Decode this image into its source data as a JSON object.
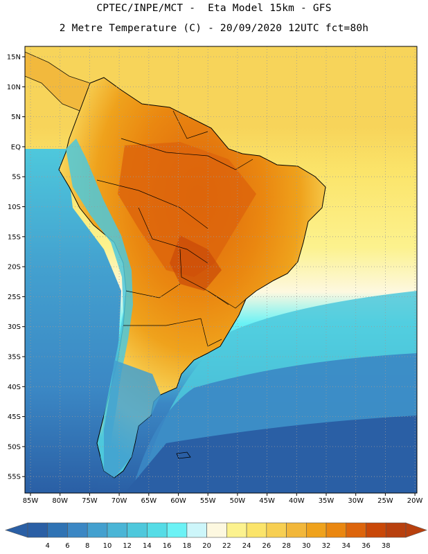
{
  "header": {
    "line1": "CPTEC/INPE/MCT -  Eta Model 15km - GFS",
    "line2": "2 Metre Temperature (C) - 20/09/2020 12UTC fct=80h"
  },
  "axes": {
    "lat_labels": [
      "15N",
      "10N",
      "5N",
      "EQ",
      "5S",
      "10S",
      "15S",
      "20S",
      "25S",
      "30S",
      "35S",
      "40S",
      "45S",
      "50S",
      "55S"
    ],
    "lon_labels": [
      "85W",
      "80W",
      "75W",
      "70W",
      "65W",
      "60W",
      "55W",
      "50W",
      "45W",
      "40W",
      "35W",
      "30W",
      "25W",
      "20W"
    ]
  },
  "colorbar": {
    "labels": [
      "4",
      "6",
      "8",
      "10",
      "12",
      "14",
      "16",
      "18",
      "20",
      "22",
      "24",
      "26",
      "28",
      "30",
      "32",
      "34",
      "36",
      "38"
    ],
    "colors": [
      "#2a5fa5",
      "#2f73b4",
      "#3b87c4",
      "#43a0cf",
      "#4ab5d6",
      "#4ec8dc",
      "#55dce6",
      "#6bf2f5",
      "#cdf6fa",
      "#fdf8e0",
      "#fcf28e",
      "#fbe46a",
      "#f7cf52",
      "#f2b73a",
      "#efa21c",
      "#ea8710",
      "#dd650c",
      "#c94808",
      "#b8400e",
      "#2c4f9a"
    ]
  },
  "map": {
    "ocean_colors": {
      "north": "#f7d45a",
      "tropic": "#fbe46a",
      "subtrop": "#fdf8e0",
      "mid": "#55dce6",
      "south": "#2f73b4",
      "deep": "#2a5fa5"
    },
    "land_colors": {
      "hot": "#dd650c",
      "warm": "#efa21c",
      "mild": "#f7cf52",
      "cool": "#4ec8dc",
      "cold": "#3b87c4"
    }
  }
}
